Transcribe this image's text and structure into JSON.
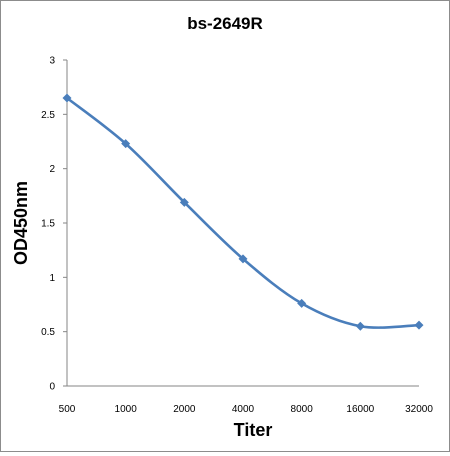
{
  "chart_data": {
    "type": "line",
    "title": "bs-2649R",
    "xlabel": "Titer",
    "ylabel": "OD450nm",
    "categories": [
      "500",
      "1000",
      "2000",
      "4000",
      "8000",
      "16000",
      "32000"
    ],
    "series": [
      {
        "values": [
          2.65,
          2.23,
          1.69,
          1.17,
          0.76,
          0.55,
          0.56
        ]
      }
    ],
    "ylim": [
      0,
      3
    ],
    "yticks": [
      "0",
      "0.5",
      "1",
      "1.5",
      "2",
      "2.5",
      "3"
    ],
    "ytick_values": [
      0,
      0.5,
      1,
      1.5,
      2,
      2.5,
      3
    ],
    "grid": false,
    "smooth": true,
    "marker": "diamond",
    "color": "#4a7ebb"
  }
}
